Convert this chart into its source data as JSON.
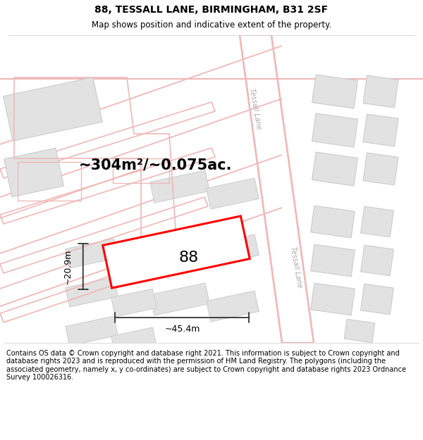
{
  "title": "88, TESSALL LANE, BIRMINGHAM, B31 2SF",
  "subtitle": "Map shows position and indicative extent of the property.",
  "area_text": "~304m²/~0.075ac.",
  "label_88": "88",
  "dim_width": "~45.4m",
  "dim_height": "~20.9m",
  "street_color": "#f0b8b8",
  "building_fill": "#e2e2e2",
  "building_stroke": "#cccccc",
  "road_fill": "#ffffff",
  "highlight_stroke": "#ff0000",
  "dim_color": "#333333",
  "footer_text": "Contains OS data © Crown copyright and database right 2021. This information is subject to Crown copyright and database rights 2023 and is reproduced with the permission of HM Land Registry. The polygons (including the associated geometry, namely x, y co-ordinates) are subject to Crown copyright and database rights 2023 Ordnance Survey 100026316.",
  "title_fontsize": 10,
  "subtitle_fontsize": 8.5,
  "area_fontsize": 15,
  "label_fontsize": 16,
  "dim_fontsize": 9,
  "footer_fontsize": 7
}
